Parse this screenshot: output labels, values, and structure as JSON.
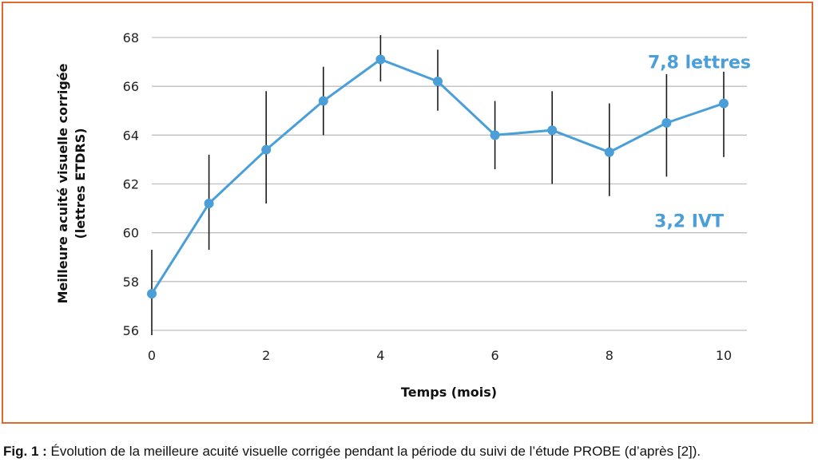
{
  "colors": {
    "frame": "#e0692e",
    "series": "#4a9fd8",
    "grid": "#bfbfbf",
    "errorbar": "#1a1a1a"
  },
  "chart_data": {
    "type": "line",
    "title": "",
    "xlabel": "Temps (mois)",
    "ylabel_line1": "Meilleure acuité visuelle corrigée",
    "ylabel_line2": "(lettres ETDRS)",
    "xlim": [
      0,
      10
    ],
    "ylim": [
      56,
      68
    ],
    "xticks": [
      0,
      2,
      4,
      6,
      8,
      10
    ],
    "yticks": [
      56,
      58,
      60,
      62,
      64,
      66,
      68
    ],
    "grid": true,
    "series": [
      {
        "x": [
          0,
          1,
          2,
          3,
          4,
          5,
          6,
          7,
          8,
          9,
          10
        ],
        "y": [
          57.5,
          61.2,
          63.4,
          65.4,
          67.1,
          66.2,
          64.0,
          64.2,
          63.3,
          64.5,
          65.3
        ],
        "err_low": [
          55.8,
          59.3,
          61.2,
          64.0,
          66.2,
          65.0,
          62.6,
          62.0,
          61.5,
          62.3,
          63.1
        ],
        "err_high": [
          59.3,
          63.2,
          65.8,
          66.8,
          68.1,
          67.5,
          65.4,
          65.8,
          65.3,
          66.5,
          66.6
        ]
      }
    ],
    "annotations": [
      {
        "text": "7,8 lettres",
        "x": 10,
        "y": 67
      },
      {
        "text": "3,2 IVT",
        "x": 10,
        "y": 60.5
      }
    ]
  },
  "caption": {
    "label": "Fig. 1 :",
    "text": " Évolution de la meilleure acuité visuelle corrigée pendant la période du suivi de l’étude PROBE (d’après [2])."
  }
}
